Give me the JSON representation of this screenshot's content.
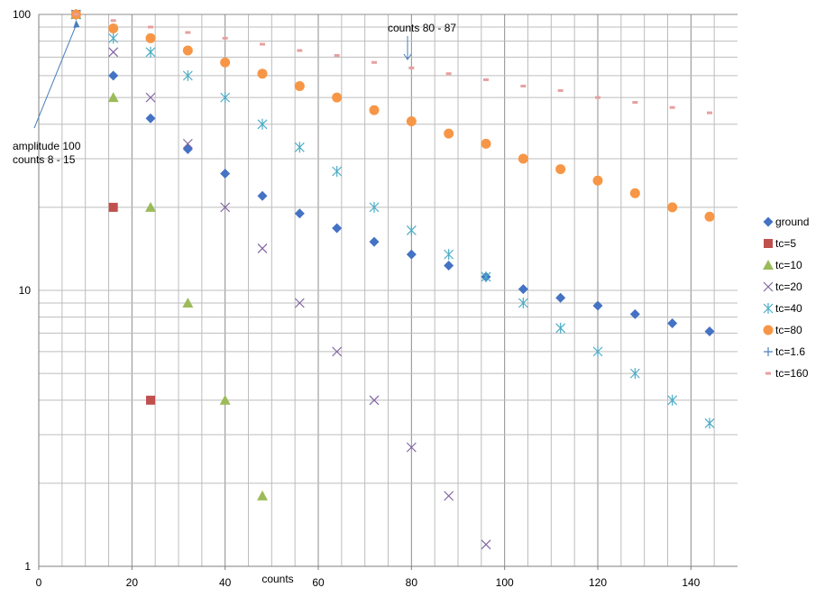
{
  "chart_data": {
    "type": "scatter",
    "xlabel": "counts",
    "ylabel": "",
    "xlim": [
      0,
      150
    ],
    "ylim": [
      1,
      100
    ],
    "yscale": "log",
    "grid": true,
    "legend_position": "right",
    "x_ticks": [
      "0",
      "20",
      "40",
      "60",
      "80",
      "100",
      "120",
      "140"
    ],
    "y_ticks": [
      "1",
      "10",
      "100"
    ],
    "annotations": [
      {
        "id": "amp",
        "lines": [
          "amplitude 100",
          "counts 8 - 15"
        ],
        "target": [
          8,
          100
        ]
      },
      {
        "id": "c80",
        "lines": [
          "counts 80 - 87"
        ],
        "target": [
          80,
          82
        ]
      }
    ],
    "series": [
      {
        "name": "ground",
        "marker": "diamond",
        "color": "#4472C4",
        "points": [
          [
            8,
            100
          ],
          [
            16,
            60
          ],
          [
            24,
            42
          ],
          [
            32,
            32.5
          ],
          [
            40,
            26.5
          ],
          [
            48,
            22
          ],
          [
            56,
            19
          ],
          [
            64,
            16.8
          ],
          [
            72,
            15
          ],
          [
            80,
            13.5
          ],
          [
            88,
            12.3
          ],
          [
            96,
            11.2
          ],
          [
            104,
            10.1
          ],
          [
            112,
            9.4
          ],
          [
            120,
            8.8
          ],
          [
            128,
            8.2
          ],
          [
            136,
            7.6
          ],
          [
            144,
            7.1
          ]
        ]
      },
      {
        "name": "tc=5",
        "marker": "square",
        "color": "#C0504D",
        "points": [
          [
            8,
            100
          ],
          [
            16,
            20
          ],
          [
            24,
            4
          ]
        ]
      },
      {
        "name": "tc=10",
        "marker": "triangle",
        "color": "#9BBB59",
        "points": [
          [
            8,
            100
          ],
          [
            16,
            50
          ],
          [
            24,
            20
          ],
          [
            32,
            9
          ],
          [
            40,
            4
          ],
          [
            48,
            1.8
          ]
        ]
      },
      {
        "name": "tc=20",
        "marker": "x",
        "color": "#8064A2",
        "points": [
          [
            8,
            100
          ],
          [
            16,
            73
          ],
          [
            24,
            50
          ],
          [
            32,
            34
          ],
          [
            40,
            20
          ],
          [
            48,
            14.2
          ],
          [
            56,
            9
          ],
          [
            64,
            6
          ],
          [
            72,
            4
          ],
          [
            80,
            2.7
          ],
          [
            88,
            1.8
          ],
          [
            96,
            1.2
          ]
        ]
      },
      {
        "name": "tc=40",
        "marker": "asterisk",
        "color": "#4BACC6",
        "points": [
          [
            8,
            100
          ],
          [
            16,
            82
          ],
          [
            24,
            73
          ],
          [
            32,
            60
          ],
          [
            40,
            50
          ],
          [
            48,
            40
          ],
          [
            56,
            33
          ],
          [
            64,
            27
          ],
          [
            72,
            20
          ],
          [
            80,
            16.5
          ],
          [
            88,
            13.5
          ],
          [
            96,
            11.2
          ],
          [
            104,
            9
          ],
          [
            112,
            7.3
          ],
          [
            120,
            6
          ],
          [
            128,
            5
          ],
          [
            136,
            4
          ],
          [
            144,
            3.3
          ]
        ]
      },
      {
        "name": "tc=80",
        "marker": "circle",
        "color": "#F79646",
        "points": [
          [
            8,
            100
          ],
          [
            16,
            89
          ],
          [
            24,
            82
          ],
          [
            32,
            74
          ],
          [
            40,
            67
          ],
          [
            48,
            61
          ],
          [
            56,
            55
          ],
          [
            64,
            50
          ],
          [
            72,
            45
          ],
          [
            80,
            41
          ],
          [
            88,
            37
          ],
          [
            96,
            34
          ],
          [
            104,
            30
          ],
          [
            112,
            27.5
          ],
          [
            120,
            25
          ],
          [
            128,
            22.5
          ],
          [
            136,
            20
          ],
          [
            144,
            18.5
          ]
        ]
      },
      {
        "name": "tc=1.6",
        "marker": "plus",
        "color": "#4F81BD",
        "points": []
      },
      {
        "name": "tc=160",
        "marker": "dash",
        "color": "#E6A0A0",
        "points": [
          [
            8,
            100
          ],
          [
            16,
            95
          ],
          [
            24,
            90
          ],
          [
            32,
            86
          ],
          [
            40,
            82
          ],
          [
            48,
            78
          ],
          [
            56,
            74
          ],
          [
            64,
            71
          ],
          [
            72,
            67
          ],
          [
            80,
            64
          ],
          [
            88,
            61
          ],
          [
            96,
            58
          ],
          [
            104,
            55
          ],
          [
            112,
            53
          ],
          [
            120,
            50
          ],
          [
            128,
            48
          ],
          [
            136,
            46
          ],
          [
            144,
            44
          ]
        ]
      }
    ]
  }
}
